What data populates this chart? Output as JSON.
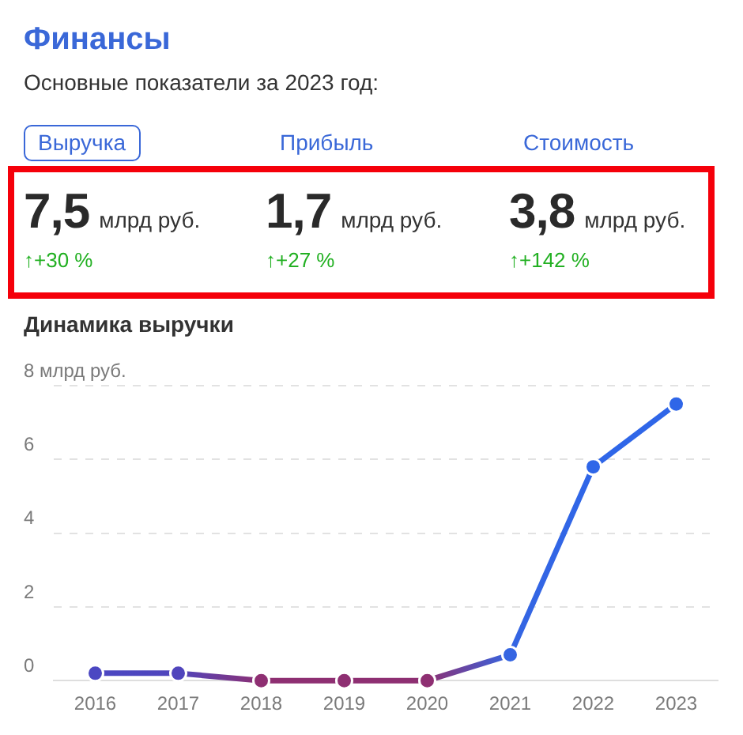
{
  "chart_data": [
    {
      "type": "other",
      "title": "Финансы",
      "subtitle": "Основные показатели за 2023 год:",
      "annotations": [
        "Выручка",
        "Прибыль",
        "Стоимость",
        "7,5",
        "млрд руб.",
        "↑+30 %",
        "1,7",
        "млрд руб.",
        "↑+27 %",
        "3,8",
        "млрд руб.",
        "↑+142 %"
      ]
    },
    {
      "type": "line",
      "title": "Динамика выручки",
      "categories": [
        "2016",
        "2017",
        "2018",
        "2019",
        "2020",
        "2021",
        "2022",
        "2023"
      ],
      "values": [
        0.2,
        0.2,
        0,
        0,
        0,
        0.7,
        5.8,
        7.5
      ],
      "colors": [
        "#4b47c2",
        "#5045bc",
        "#8e2f72",
        "#8e2f72",
        "#8e2f72",
        "#3565e2",
        "#2f66e8",
        "#2f66e8"
      ],
      "ylim": [
        0,
        8
      ],
      "yticks": [
        0,
        2,
        4,
        6,
        {
          "value": 8,
          "label": "8 млрд руб."
        }
      ],
      "grid": "y",
      "marker": "circle",
      "line_style": "solid"
    }
  ]
}
